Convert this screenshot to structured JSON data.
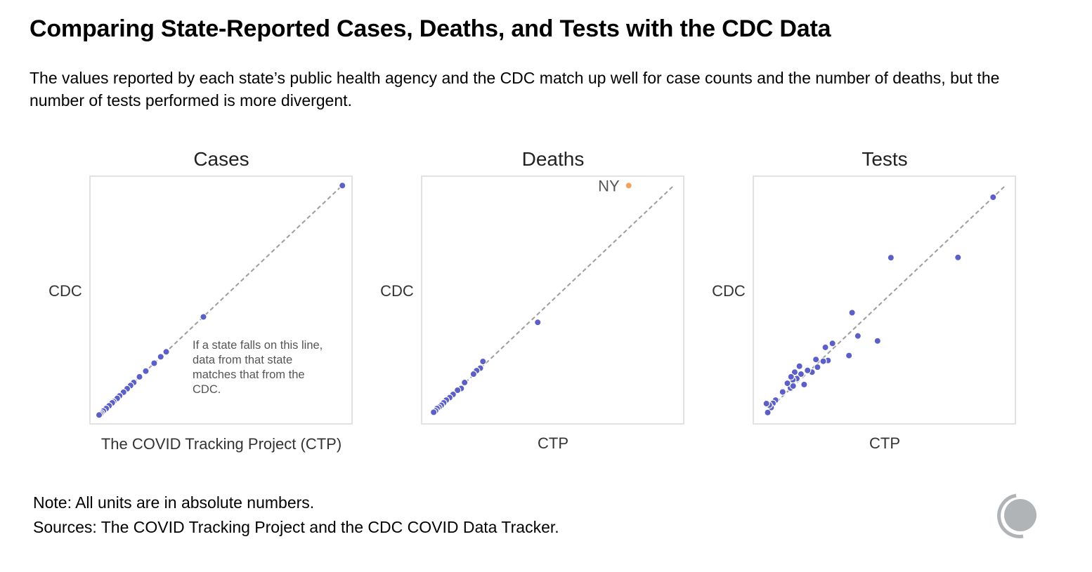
{
  "header": {
    "title": "Comparing State-Reported Cases, Deaths, and Tests with the CDC Data",
    "subtitle": "The values reported by each state’s public health agency and the CDC match up well for case counts and the number of deaths, but the number of tests performed is more divergent."
  },
  "colors": {
    "point": "#5b5fc7",
    "highlight": "#f4a259",
    "refline": "#9e9e9e",
    "frame": "#d9d9d9",
    "logo": "#b0b4b7"
  },
  "chart_data": [
    {
      "type": "scatter",
      "title": "Cases",
      "xlabel": "The COVID Tracking Project (CTP)",
      "ylabel": "CDC",
      "xlim": [
        0,
        1
      ],
      "ylim": [
        0,
        1
      ],
      "reference_line": "y = x",
      "annotation": [
        "If a state falls on this line,",
        "data from that state",
        "matches that from the",
        "CDC."
      ],
      "points": [
        {
          "x": 0.963,
          "y": 0.962
        },
        {
          "x": 0.433,
          "y": 0.432
        },
        {
          "x": 0.291,
          "y": 0.291
        },
        {
          "x": 0.27,
          "y": 0.271
        },
        {
          "x": 0.245,
          "y": 0.245
        },
        {
          "x": 0.213,
          "y": 0.213
        },
        {
          "x": 0.189,
          "y": 0.19
        },
        {
          "x": 0.167,
          "y": 0.167
        },
        {
          "x": 0.155,
          "y": 0.155
        },
        {
          "x": 0.142,
          "y": 0.142
        },
        {
          "x": 0.128,
          "y": 0.128
        },
        {
          "x": 0.113,
          "y": 0.113
        },
        {
          "x": 0.104,
          "y": 0.103
        },
        {
          "x": 0.09,
          "y": 0.09
        },
        {
          "x": 0.085,
          "y": 0.085
        },
        {
          "x": 0.073,
          "y": 0.073
        },
        {
          "x": 0.062,
          "y": 0.062
        },
        {
          "x": 0.051,
          "y": 0.052
        },
        {
          "x": 0.044,
          "y": 0.044
        },
        {
          "x": 0.04,
          "y": 0.039
        },
        {
          "x": 0.035,
          "y": 0.036
        }
      ]
    },
    {
      "type": "scatter",
      "title": "Deaths",
      "xlabel": "CTP",
      "ylabel": "CDC",
      "xlim": [
        0,
        1
      ],
      "ylim": [
        0,
        1
      ],
      "reference_line": "y = x",
      "highlight": {
        "label": "NY",
        "x": 0.79,
        "y": 0.962
      },
      "points": [
        {
          "x": 0.443,
          "y": 0.41
        },
        {
          "x": 0.234,
          "y": 0.252
        },
        {
          "x": 0.224,
          "y": 0.225
        },
        {
          "x": 0.21,
          "y": 0.215
        },
        {
          "x": 0.198,
          "y": 0.201
        },
        {
          "x": 0.164,
          "y": 0.167
        },
        {
          "x": 0.151,
          "y": 0.143
        },
        {
          "x": 0.137,
          "y": 0.136
        },
        {
          "x": 0.12,
          "y": 0.119
        },
        {
          "x": 0.107,
          "y": 0.106
        },
        {
          "x": 0.094,
          "y": 0.096
        },
        {
          "x": 0.084,
          "y": 0.085
        },
        {
          "x": 0.075,
          "y": 0.075
        },
        {
          "x": 0.066,
          "y": 0.067
        },
        {
          "x": 0.059,
          "y": 0.062
        },
        {
          "x": 0.053,
          "y": 0.053
        },
        {
          "x": 0.046,
          "y": 0.047
        }
      ]
    },
    {
      "type": "scatter",
      "title": "Tests",
      "xlabel": "CTP",
      "ylabel": "CDC",
      "xlim": [
        0,
        1
      ],
      "ylim": [
        0,
        1
      ],
      "reference_line": "y = x",
      "points": [
        {
          "x": 0.915,
          "y": 0.915
        },
        {
          "x": 0.781,
          "y": 0.672
        },
        {
          "x": 0.525,
          "y": 0.671
        },
        {
          "x": 0.377,
          "y": 0.449
        },
        {
          "x": 0.474,
          "y": 0.335
        },
        {
          "x": 0.399,
          "y": 0.355
        },
        {
          "x": 0.365,
          "y": 0.276
        },
        {
          "x": 0.302,
          "y": 0.325
        },
        {
          "x": 0.275,
          "y": 0.309
        },
        {
          "x": 0.285,
          "y": 0.256
        },
        {
          "x": 0.267,
          "y": 0.253
        },
        {
          "x": 0.239,
          "y": 0.26
        },
        {
          "x": 0.245,
          "y": 0.229
        },
        {
          "x": 0.224,
          "y": 0.209
        },
        {
          "x": 0.207,
          "y": 0.216
        },
        {
          "x": 0.194,
          "y": 0.159
        },
        {
          "x": 0.182,
          "y": 0.201
        },
        {
          "x": 0.176,
          "y": 0.233
        },
        {
          "x": 0.166,
          "y": 0.183
        },
        {
          "x": 0.158,
          "y": 0.209
        },
        {
          "x": 0.151,
          "y": 0.178
        },
        {
          "x": 0.142,
          "y": 0.145
        },
        {
          "x": 0.144,
          "y": 0.19
        },
        {
          "x": 0.152,
          "y": 0.153
        },
        {
          "x": 0.13,
          "y": 0.164
        },
        {
          "x": 0.112,
          "y": 0.129
        },
        {
          "x": 0.085,
          "y": 0.096
        },
        {
          "x": 0.075,
          "y": 0.083
        },
        {
          "x": 0.068,
          "y": 0.066
        },
        {
          "x": 0.061,
          "y": 0.076
        },
        {
          "x": 0.055,
          "y": 0.046
        },
        {
          "x": 0.05,
          "y": 0.082
        }
      ]
    }
  ],
  "footer": {
    "note": "Note: All units are in absolute numbers.",
    "sources": "Sources: The COVID Tracking Project and the CDC COVID Data Tracker."
  }
}
